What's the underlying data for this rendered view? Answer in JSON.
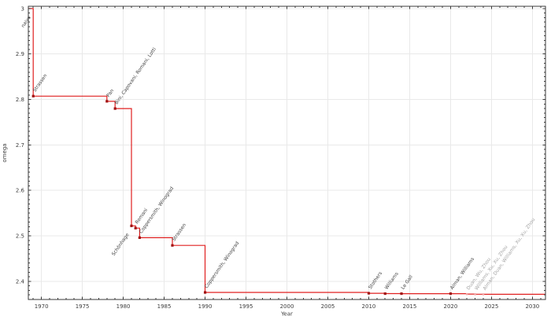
{
  "chart_data": {
    "type": "line",
    "subtype": "step-post",
    "title": "",
    "xlabel": "Year",
    "ylabel": "omega",
    "xlim": [
      1968.4,
      2031.6
    ],
    "ylim": [
      2.36,
      3.005
    ],
    "grid": true,
    "legend": "none",
    "x_major_ticks": [
      1970,
      1975,
      1980,
      1985,
      1990,
      1995,
      2000,
      2005,
      2010,
      2015,
      2020,
      2025,
      2030
    ],
    "x_minor_step": 1,
    "y_major_ticks": [
      3.0,
      2.9,
      2.8,
      2.7,
      2.6,
      2.5,
      2.4
    ],
    "y_tick_labels": [
      "3",
      "2.9",
      "2.8",
      "2.7",
      "2.6",
      "2.5",
      "2.4"
    ],
    "y_minor_step": 0.01,
    "colors": {
      "line": "#e02020",
      "marker": "#a01010",
      "marker_recent": "#f2a6a6",
      "label": "#3d3d3d",
      "label_recent": "#a3a3a3",
      "grid": "#e9e9e9",
      "axis": "#3a3a3a",
      "tick_label": "#3d3d3d"
    },
    "bounds": [
      {
        "year": null,
        "omega": 3.0,
        "label": "naive",
        "label_side": "below",
        "recent": false
      },
      {
        "year": 1969,
        "omega": 2.8074,
        "label": "Strassen",
        "label_side": "above",
        "recent": false
      },
      {
        "year": 1978,
        "omega": 2.796,
        "label": "Pan",
        "label_side": "above",
        "recent": false
      },
      {
        "year": 1979,
        "omega": 2.78,
        "label": "Bini, Capovani, Romani, Lotti",
        "label_side": "above",
        "recent": false
      },
      {
        "year": 1981,
        "omega": 2.522,
        "label": "Schönhage",
        "label_side": "below",
        "recent": false
      },
      {
        "year": 1981.5,
        "omega": 2.517,
        "label": "Romani",
        "label_side": "above",
        "recent": false
      },
      {
        "year": 1982,
        "omega": 2.496,
        "label": "Coppersmith, Winograd",
        "label_side": "above",
        "recent": false
      },
      {
        "year": 1986,
        "omega": 2.479,
        "label": "Strassen",
        "label_side": "above",
        "recent": false
      },
      {
        "year": 1990,
        "omega": 2.3755,
        "label": "Coppersmith, Winograd",
        "label_side": "above",
        "recent": false
      },
      {
        "year": 2010,
        "omega": 2.3737,
        "label": "Stothers",
        "label_side": "above",
        "recent": false
      },
      {
        "year": 2012,
        "omega": 2.3729,
        "label": "Williams",
        "label_side": "above",
        "recent": false
      },
      {
        "year": 2014,
        "omega": 2.3728639,
        "label": "Le Gall",
        "label_side": "above",
        "recent": false
      },
      {
        "year": 2020,
        "omega": 2.3728596,
        "label": "Alman, Williams",
        "label_side": "above",
        "recent": false
      },
      {
        "year": 2022,
        "omega": 2.371866,
        "label": "Duan, Wu, Zhou",
        "label_side": "above",
        "recent": true
      },
      {
        "year": 2023,
        "omega": 2.371552,
        "label": "Williams, Xu, Xu, Zhou",
        "label_side": "above",
        "recent": true
      },
      {
        "year": 2024,
        "omega": 2.371339,
        "label": "Alman, Duan, Williams, Xu, Xu, Zhou",
        "label_side": "above",
        "recent": true
      }
    ]
  }
}
